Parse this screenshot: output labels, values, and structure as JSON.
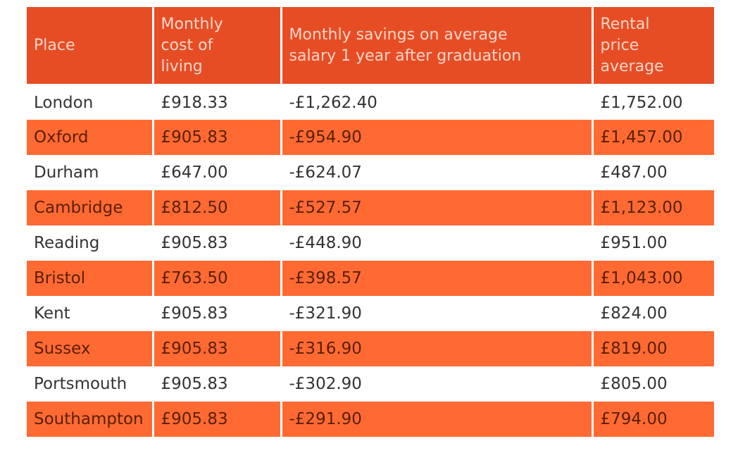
{
  "chart_data": {
    "type": "table",
    "columns": [
      "Place",
      "Monthly\ncost of\nliving",
      "Monthly savings on average\nsalary 1 year after graduation",
      "Rental\nprice\naverage"
    ],
    "rows": [
      [
        "London",
        "£918.33",
        "-£1,262.40",
        "£1,752.00"
      ],
      [
        "Oxford",
        "£905.83",
        "-£954.90",
        "£1,457.00"
      ],
      [
        "Durham",
        "£647.00",
        "-£624.07",
        "£487.00"
      ],
      [
        "Cambridge",
        "£812.50",
        "-£527.57",
        "£1,123.00"
      ],
      [
        "Reading",
        "£905.83",
        "-£448.90",
        "£951.00"
      ],
      [
        "Bristol",
        "£763.50",
        "-£398.57",
        "£1,043.00"
      ],
      [
        "Kent",
        "£905.83",
        "-£321.90",
        "£824.00"
      ],
      [
        "Sussex",
        "£905.83",
        "-£316.90",
        "£819.00"
      ],
      [
        "Portsmouth",
        "£905.83",
        "-£302.90",
        "£805.00"
      ],
      [
        "Southampton",
        "£905.83",
        "-£291.90",
        "£794.00"
      ]
    ],
    "colors": {
      "header_bg": "#e64d25",
      "header_text": "#ffd6c9",
      "stripe_bg": "#ff6a33",
      "stripe_text": "#5a1e08",
      "plain_bg": "#ffffff",
      "plain_text": "#333333"
    }
  }
}
